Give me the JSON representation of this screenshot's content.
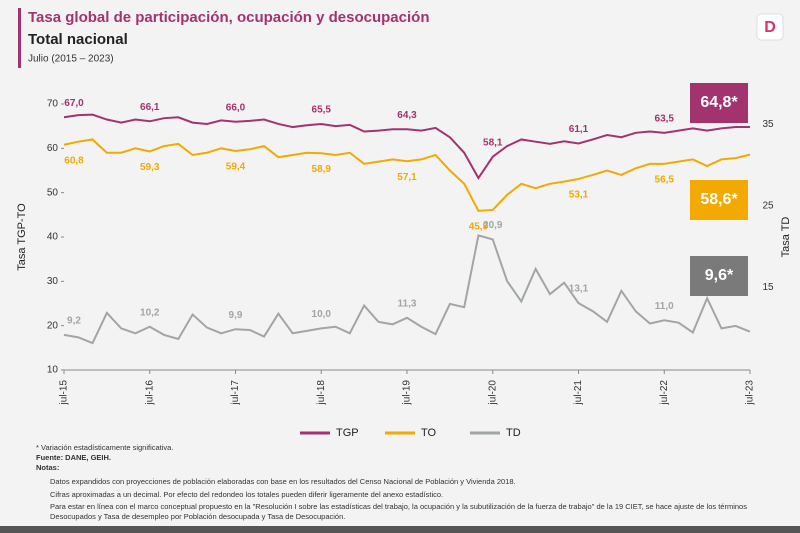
{
  "header": {
    "title": "Tasa global de participación, ocupación y desocupación",
    "subtitle": "Total nacional",
    "period": "Julio (2015 – 2023)",
    "logo": "D"
  },
  "chart_data": {
    "type": "line",
    "x": [
      2015.5,
      2015.667,
      2015.833,
      2016,
      2016.167,
      2016.333,
      2016.5,
      2016.667,
      2016.833,
      2017,
      2017.167,
      2017.333,
      2017.5,
      2017.667,
      2017.833,
      2018,
      2018.167,
      2018.333,
      2018.5,
      2018.667,
      2018.833,
      2019,
      2019.167,
      2019.333,
      2019.5,
      2019.667,
      2019.833,
      2020,
      2020.167,
      2020.333,
      2020.5,
      2020.667,
      2020.833,
      2021,
      2021.167,
      2021.333,
      2021.5,
      2021.667,
      2021.833,
      2022,
      2022.167,
      2022.333,
      2022.5,
      2022.667,
      2022.833,
      2023,
      2023.167,
      2023.333,
      2023.5
    ],
    "xlim": [
      2015.5,
      2023.5
    ],
    "xticks": [
      {
        "value": 2015.5,
        "label": "jul-15"
      },
      {
        "value": 2016.5,
        "label": "jul-16"
      },
      {
        "value": 2017.5,
        "label": "jul-17"
      },
      {
        "value": 2018.5,
        "label": "jul-18"
      },
      {
        "value": 2019.5,
        "label": "jul-19"
      },
      {
        "value": 2020.5,
        "label": "jul-20"
      },
      {
        "value": 2021.5,
        "label": "jul-21"
      },
      {
        "value": 2022.5,
        "label": "jul-22"
      },
      {
        "value": 2023.5,
        "label": "jul-23"
      }
    ],
    "ylabel": "Tasa TGP-TO",
    "ylim": [
      10,
      70
    ],
    "yticks": [
      10,
      20,
      30,
      40,
      50,
      60,
      70
    ],
    "y2label": "Tasa TD",
    "y2lim": [
      4.9,
      37.5
    ],
    "y2ticks": [
      15,
      25,
      35
    ],
    "series": [
      {
        "name": "TGP",
        "color": "#a3336f",
        "values": [
          67.0,
          67.5,
          67.6,
          66.5,
          65.8,
          66.5,
          66.1,
          66.8,
          67.0,
          65.8,
          65.5,
          66.3,
          66.0,
          66.2,
          66.5,
          65.5,
          64.8,
          65.2,
          65.5,
          65.0,
          65.3,
          63.8,
          64.0,
          64.3,
          64.3,
          64.0,
          64.6,
          62.5,
          59.0,
          53.3,
          58.1,
          60.5,
          62.0,
          61.5,
          61.0,
          61.6,
          61.1,
          62.0,
          63.0,
          62.5,
          63.5,
          63.8,
          63.5,
          64.0,
          64.5,
          64.0,
          64.5,
          64.8,
          64.8
        ],
        "value_labels": [
          "67,0",
          null,
          null,
          null,
          null,
          null,
          "66,1",
          null,
          null,
          null,
          null,
          null,
          "66,0",
          null,
          null,
          null,
          null,
          null,
          "65,5",
          null,
          null,
          null,
          null,
          null,
          "64,3",
          null,
          null,
          null,
          null,
          null,
          "58,1",
          null,
          null,
          null,
          null,
          null,
          "61,1",
          null,
          null,
          null,
          null,
          null,
          "63,5",
          null,
          null,
          null,
          null,
          null,
          "64,8*"
        ]
      },
      {
        "name": "TO",
        "color": "#f2a900",
        "values": [
          60.8,
          61.5,
          62.0,
          59.0,
          59.0,
          60.0,
          59.3,
          60.5,
          61.0,
          58.5,
          59.0,
          60.0,
          59.4,
          59.8,
          60.5,
          58.0,
          58.5,
          59.0,
          58.9,
          58.5,
          59.0,
          56.5,
          57.0,
          57.5,
          57.1,
          57.5,
          58.5,
          55.0,
          52.0,
          45.9,
          46.1,
          49.5,
          52.0,
          51.0,
          52.0,
          52.5,
          53.1,
          54.0,
          55.0,
          54.0,
          55.5,
          56.5,
          56.5,
          57.0,
          57.5,
          56.0,
          57.5,
          57.8,
          58.6
        ],
        "value_labels": [
          "60,8",
          null,
          null,
          null,
          null,
          null,
          "59,3",
          null,
          null,
          null,
          null,
          null,
          "59,4",
          null,
          null,
          null,
          null,
          null,
          "58,9",
          null,
          null,
          null,
          null,
          null,
          "57,1",
          null,
          null,
          null,
          null,
          "45,9",
          null,
          null,
          null,
          null,
          null,
          null,
          "53,1",
          null,
          null,
          null,
          null,
          null,
          "56,5",
          null,
          null,
          null,
          null,
          null,
          "58,6*"
        ]
      },
      {
        "name": "TD",
        "color": "#a2a6a3",
        "axis": "y2",
        "values": [
          9.2,
          8.9,
          8.2,
          11.9,
          10.0,
          9.4,
          10.2,
          9.2,
          8.7,
          11.7,
          10.1,
          9.4,
          9.9,
          9.8,
          9.0,
          11.8,
          9.4,
          9.7,
          10.0,
          10.2,
          9.4,
          12.8,
          10.8,
          10.5,
          11.3,
          10.2,
          9.3,
          13.0,
          12.6,
          21.4,
          20.9,
          15.8,
          13.3,
          17.3,
          14.2,
          15.6,
          13.1,
          12.1,
          10.8,
          14.6,
          12.1,
          10.6,
          11.0,
          10.7,
          9.5,
          13.7,
          10.0,
          10.3,
          9.6
        ],
        "value_labels": [
          "9,2",
          null,
          null,
          null,
          null,
          null,
          "10,2",
          null,
          null,
          null,
          null,
          null,
          "9,9",
          null,
          null,
          null,
          null,
          null,
          "10,0",
          null,
          null,
          null,
          null,
          null,
          "11,3",
          null,
          null,
          null,
          null,
          null,
          "20,9",
          null,
          null,
          null,
          null,
          null,
          "13,1",
          null,
          null,
          null,
          null,
          null,
          "11,0",
          null,
          null,
          null,
          null,
          null,
          "9,6*"
        ]
      }
    ]
  },
  "footer": {
    "footnote": "* Variación estadísticamente significativa.",
    "source": "Fuente: DANE, GEIH.",
    "notes_title": "Notas:",
    "notes": [
      "Datos expandidos con proyecciones de población elaboradas con base en los resultados del Censo Nacional de Población y Vivienda 2018.",
      "Cifras aproximadas a un decimal. Por efecto del redondeo los totales pueden diferir ligeramente del anexo estadístico.",
      "Para estar en línea con el marco conceptual propuesto en la \"Resolución I sobre las estadísticas del trabajo, la ocupación y la subutilización de la fuerza de trabajo\" de la 19 CIET, se hace ajuste de los términos Desocupados y Tasa de desempleo por Población desocupada y Tasa de Desocupación."
    ]
  }
}
